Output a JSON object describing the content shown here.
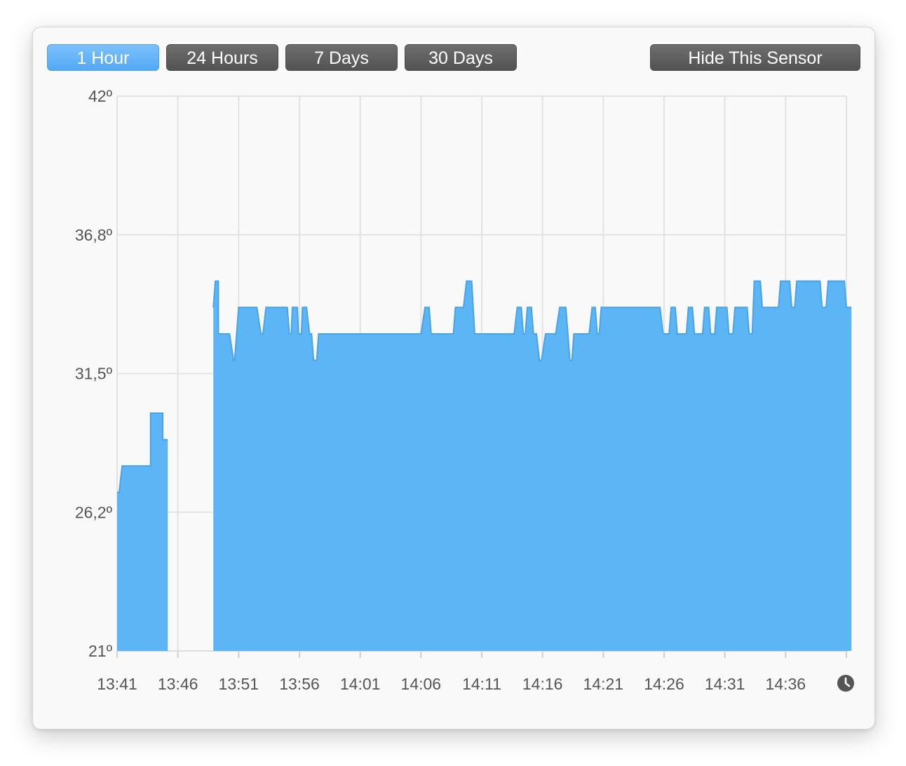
{
  "toolbar": {
    "buttons": [
      {
        "label": "1 Hour",
        "active": true
      },
      {
        "label": "24 Hours",
        "active": false
      },
      {
        "label": "7 Days",
        "active": false
      },
      {
        "label": "30 Days",
        "active": false
      }
    ],
    "hide_label": "Hide This Sensor"
  },
  "colors": {
    "fill": "#5cb5f5",
    "stroke": "#4aa3e6",
    "grid": "#e2e2e2",
    "active_button": "#5aaef7",
    "button": "#5e5e5e"
  },
  "icons": {
    "time": "clock-icon"
  },
  "chart_data": {
    "type": "area",
    "title": "",
    "xlabel": "",
    "ylabel": "",
    "x_ticks": [
      "13:41",
      "13:46",
      "13:51",
      "13:56",
      "14:01",
      "14:06",
      "14:11",
      "14:16",
      "14:21",
      "14:26",
      "14:31",
      "14:36"
    ],
    "y_ticks": [
      "21º",
      "26,2º",
      "31,5º",
      "36,8º",
      "42º"
    ],
    "ylim": [
      21,
      42
    ],
    "xlim": [
      "13:41:00",
      "14:41:30"
    ],
    "grid": true,
    "series": [
      {
        "segments": [
          [
            [
              "13:41:00",
              27.0
            ],
            [
              "13:41:10",
              27.0
            ],
            [
              "13:41:25",
              28.0
            ],
            [
              "13:43:45",
              28.0
            ],
            [
              "13:43:45",
              30.0
            ],
            [
              "13:44:45",
              30.0
            ],
            [
              "13:44:45",
              29.0
            ],
            [
              "13:45:10",
              29.0
            ]
          ],
          [
            [
              "13:48:55",
              34.0
            ],
            [
              "13:49:05",
              35.0
            ],
            [
              "13:49:20",
              35.0
            ],
            [
              "13:49:20",
              33.0
            ],
            [
              "13:50:15",
              33.0
            ],
            [
              "13:50:35",
              32.0
            ],
            [
              "13:50:40",
              32.0
            ],
            [
              "13:51:00",
              34.0
            ],
            [
              "13:52:30",
              34.0
            ],
            [
              "13:52:50",
              33.0
            ],
            [
              "13:53:00",
              33.0
            ],
            [
              "13:53:15",
              34.0
            ],
            [
              "13:55:00",
              34.0
            ],
            [
              "13:55:10",
              33.0
            ],
            [
              "13:55:20",
              33.0
            ],
            [
              "13:55:25",
              34.0
            ],
            [
              "13:55:50",
              34.0
            ],
            [
              "13:55:55",
              33.0
            ],
            [
              "13:56:10",
              33.0
            ],
            [
              "13:56:15",
              34.0
            ],
            [
              "13:56:35",
              34.0
            ],
            [
              "13:56:50",
              33.0
            ],
            [
              "13:57:00",
              33.0
            ],
            [
              "13:57:10",
              32.0
            ],
            [
              "13:57:25",
              32.0
            ],
            [
              "13:57:35",
              33.0
            ],
            [
              "14:06:00",
              33.0
            ],
            [
              "14:06:20",
              34.0
            ],
            [
              "14:06:40",
              34.0
            ],
            [
              "14:06:50",
              33.0
            ],
            [
              "14:08:40",
              33.0
            ],
            [
              "14:08:50",
              34.0
            ],
            [
              "14:09:30",
              34.0
            ],
            [
              "14:09:45",
              35.0
            ],
            [
              "14:10:10",
              35.0
            ],
            [
              "14:10:25",
              33.0
            ],
            [
              "14:13:40",
              33.0
            ],
            [
              "14:13:55",
              34.0
            ],
            [
              "14:14:15",
              34.0
            ],
            [
              "14:14:25",
              33.0
            ],
            [
              "14:14:35",
              33.0
            ],
            [
              "14:14:45",
              34.0
            ],
            [
              "14:15:05",
              34.0
            ],
            [
              "14:15:15",
              33.0
            ],
            [
              "14:15:30",
              33.0
            ],
            [
              "14:15:45",
              32.0
            ],
            [
              "14:15:55",
              32.0
            ],
            [
              "14:16:15",
              33.0
            ],
            [
              "14:17:05",
              33.0
            ],
            [
              "14:17:25",
              34.0
            ],
            [
              "14:17:55",
              34.0
            ],
            [
              "14:18:15",
              32.0
            ],
            [
              "14:18:25",
              32.0
            ],
            [
              "14:18:35",
              33.0
            ],
            [
              "14:19:50",
              33.0
            ],
            [
              "14:20:05",
              34.0
            ],
            [
              "14:20:20",
              34.0
            ],
            [
              "14:20:30",
              33.0
            ],
            [
              "14:20:40",
              33.0
            ],
            [
              "14:20:50",
              34.0
            ],
            [
              "14:25:40",
              34.0
            ],
            [
              "14:25:55",
              33.0
            ],
            [
              "14:26:25",
              33.0
            ],
            [
              "14:26:35",
              34.0
            ],
            [
              "14:26:55",
              34.0
            ],
            [
              "14:27:05",
              33.0
            ],
            [
              "14:27:50",
              33.0
            ],
            [
              "14:28:00",
              34.0
            ],
            [
              "14:28:20",
              34.0
            ],
            [
              "14:28:30",
              33.0
            ],
            [
              "14:29:10",
              33.0
            ],
            [
              "14:29:20",
              34.0
            ],
            [
              "14:29:40",
              34.0
            ],
            [
              "14:29:50",
              33.0
            ],
            [
              "14:30:10",
              33.0
            ],
            [
              "14:30:20",
              34.0
            ],
            [
              "14:31:10",
              34.0
            ],
            [
              "14:31:20",
              33.0
            ],
            [
              "14:31:40",
              33.0
            ],
            [
              "14:31:50",
              34.0
            ],
            [
              "14:32:50",
              34.0
            ],
            [
              "14:33:00",
              33.0
            ],
            [
              "14:33:15",
              33.0
            ],
            [
              "14:33:25",
              35.0
            ],
            [
              "14:33:55",
              35.0
            ],
            [
              "14:34:05",
              34.0
            ],
            [
              "14:35:25",
              34.0
            ],
            [
              "14:35:35",
              35.0
            ],
            [
              "14:36:20",
              35.0
            ],
            [
              "14:36:30",
              34.0
            ],
            [
              "14:36:45",
              34.0
            ],
            [
              "14:36:55",
              35.0
            ],
            [
              "14:38:50",
              35.0
            ],
            [
              "14:39:00",
              34.0
            ],
            [
              "14:39:20",
              34.0
            ],
            [
              "14:39:30",
              35.0
            ],
            [
              "14:40:50",
              35.0
            ],
            [
              "14:41:00",
              34.0
            ],
            [
              "14:41:25",
              34.0
            ]
          ]
        ]
      }
    ]
  }
}
